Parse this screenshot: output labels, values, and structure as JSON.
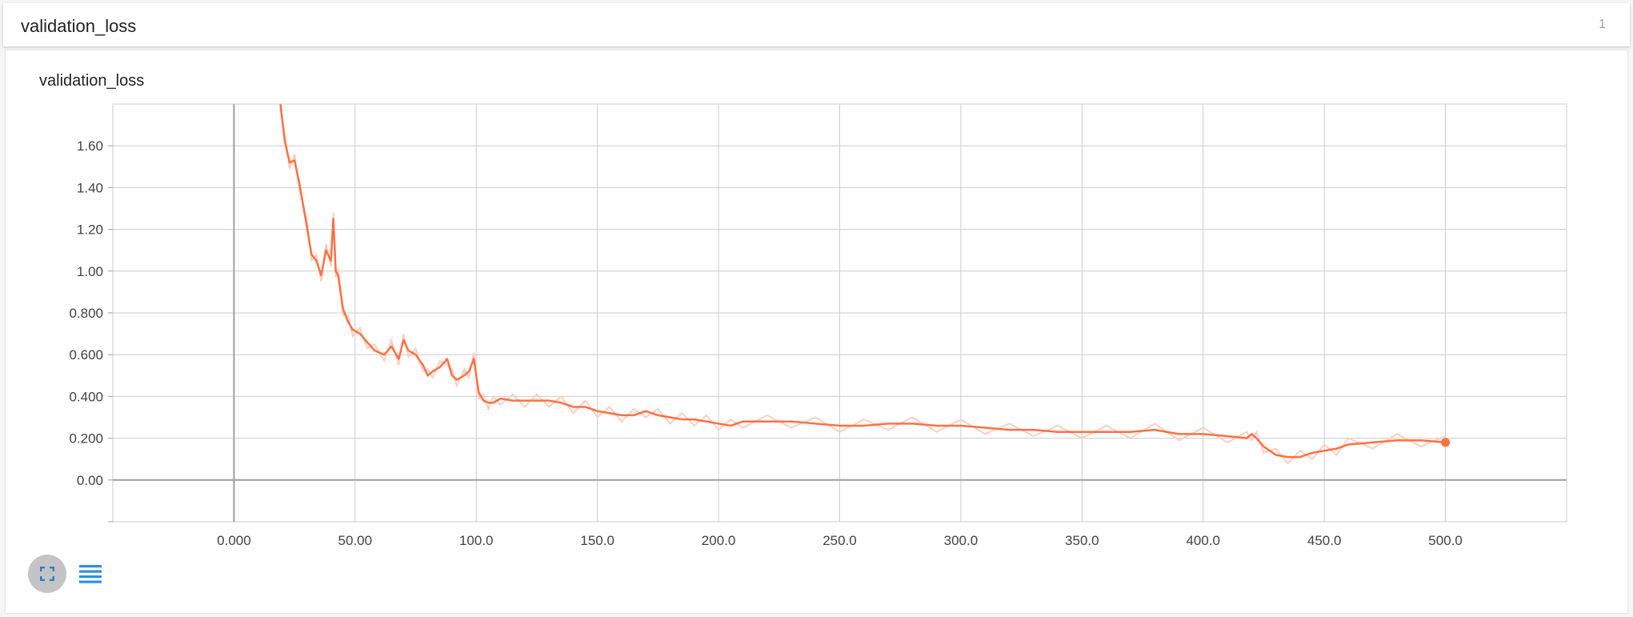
{
  "header": {
    "title": "validation_loss",
    "count": "1"
  },
  "card": {
    "title": "validation_loss"
  },
  "icons": {
    "expand": "fullscreen-icon",
    "list": "list-icon"
  },
  "colors": {
    "line": "#ff7043",
    "raw_line": "#ffcdbf",
    "grid": "#cccccc",
    "axis": "#9e9e9e"
  },
  "chart_data": {
    "type": "line",
    "title": "validation_loss",
    "xlabel": "",
    "ylabel": "",
    "xlim": [
      -50,
      550
    ],
    "ylim": [
      -0.2,
      1.8
    ],
    "x_ticks": [
      {
        "v": 0,
        "label": "0.000"
      },
      {
        "v": 50,
        "label": "50.00"
      },
      {
        "v": 100,
        "label": "100.0"
      },
      {
        "v": 150,
        "label": "150.0"
      },
      {
        "v": 200,
        "label": "200.0"
      },
      {
        "v": 250,
        "label": "250.0"
      },
      {
        "v": 300,
        "label": "300.0"
      },
      {
        "v": 350,
        "label": "350.0"
      },
      {
        "v": 400,
        "label": "400.0"
      },
      {
        "v": 450,
        "label": "450.0"
      },
      {
        "v": 500,
        "label": "500.0"
      }
    ],
    "y_ticks": [
      {
        "v": 0.0,
        "label": "0.00"
      },
      {
        "v": 0.2,
        "label": "0.200"
      },
      {
        "v": 0.4,
        "label": "0.400"
      },
      {
        "v": 0.6,
        "label": "0.600"
      },
      {
        "v": 0.8,
        "label": "0.800"
      },
      {
        "v": 1.0,
        "label": "1.00"
      },
      {
        "v": 1.2,
        "label": "1.20"
      },
      {
        "v": 1.4,
        "label": "1.40"
      },
      {
        "v": 1.6,
        "label": "1.60"
      }
    ],
    "grid": true,
    "series": [
      {
        "x": [
          19,
          21,
          23,
          25,
          27,
          30,
          32,
          34,
          36,
          38,
          40,
          41,
          42,
          43,
          45,
          47,
          49,
          52,
          55,
          58,
          62,
          65,
          68,
          70,
          72,
          75,
          78,
          80,
          82,
          85,
          88,
          90,
          92,
          95,
          97,
          99,
          101,
          103,
          105,
          107,
          110,
          115,
          120,
          125,
          130,
          135,
          140,
          145,
          150,
          155,
          160,
          165,
          170,
          175,
          180,
          185,
          190,
          195,
          200,
          205,
          210,
          220,
          230,
          240,
          250,
          260,
          270,
          280,
          290,
          300,
          310,
          320,
          330,
          340,
          350,
          360,
          370,
          380,
          390,
          400,
          410,
          418,
          420,
          422,
          425,
          430,
          435,
          440,
          445,
          450,
          455,
          460,
          470,
          480,
          490,
          500
        ],
        "y": [
          1.82,
          1.62,
          1.52,
          1.53,
          1.42,
          1.22,
          1.08,
          1.05,
          0.98,
          1.1,
          1.05,
          1.25,
          1.0,
          0.98,
          0.82,
          0.76,
          0.72,
          0.7,
          0.66,
          0.62,
          0.6,
          0.64,
          0.58,
          0.67,
          0.62,
          0.6,
          0.55,
          0.5,
          0.52,
          0.54,
          0.58,
          0.5,
          0.48,
          0.5,
          0.52,
          0.58,
          0.42,
          0.38,
          0.37,
          0.37,
          0.39,
          0.38,
          0.38,
          0.38,
          0.38,
          0.37,
          0.35,
          0.35,
          0.33,
          0.32,
          0.31,
          0.31,
          0.33,
          0.31,
          0.3,
          0.29,
          0.29,
          0.28,
          0.27,
          0.26,
          0.28,
          0.28,
          0.28,
          0.27,
          0.26,
          0.26,
          0.27,
          0.27,
          0.26,
          0.26,
          0.25,
          0.24,
          0.24,
          0.23,
          0.23,
          0.23,
          0.23,
          0.24,
          0.22,
          0.22,
          0.21,
          0.2,
          0.22,
          0.2,
          0.16,
          0.12,
          0.11,
          0.11,
          0.13,
          0.14,
          0.15,
          0.17,
          0.18,
          0.19,
          0.19,
          0.18
        ]
      }
    ]
  }
}
